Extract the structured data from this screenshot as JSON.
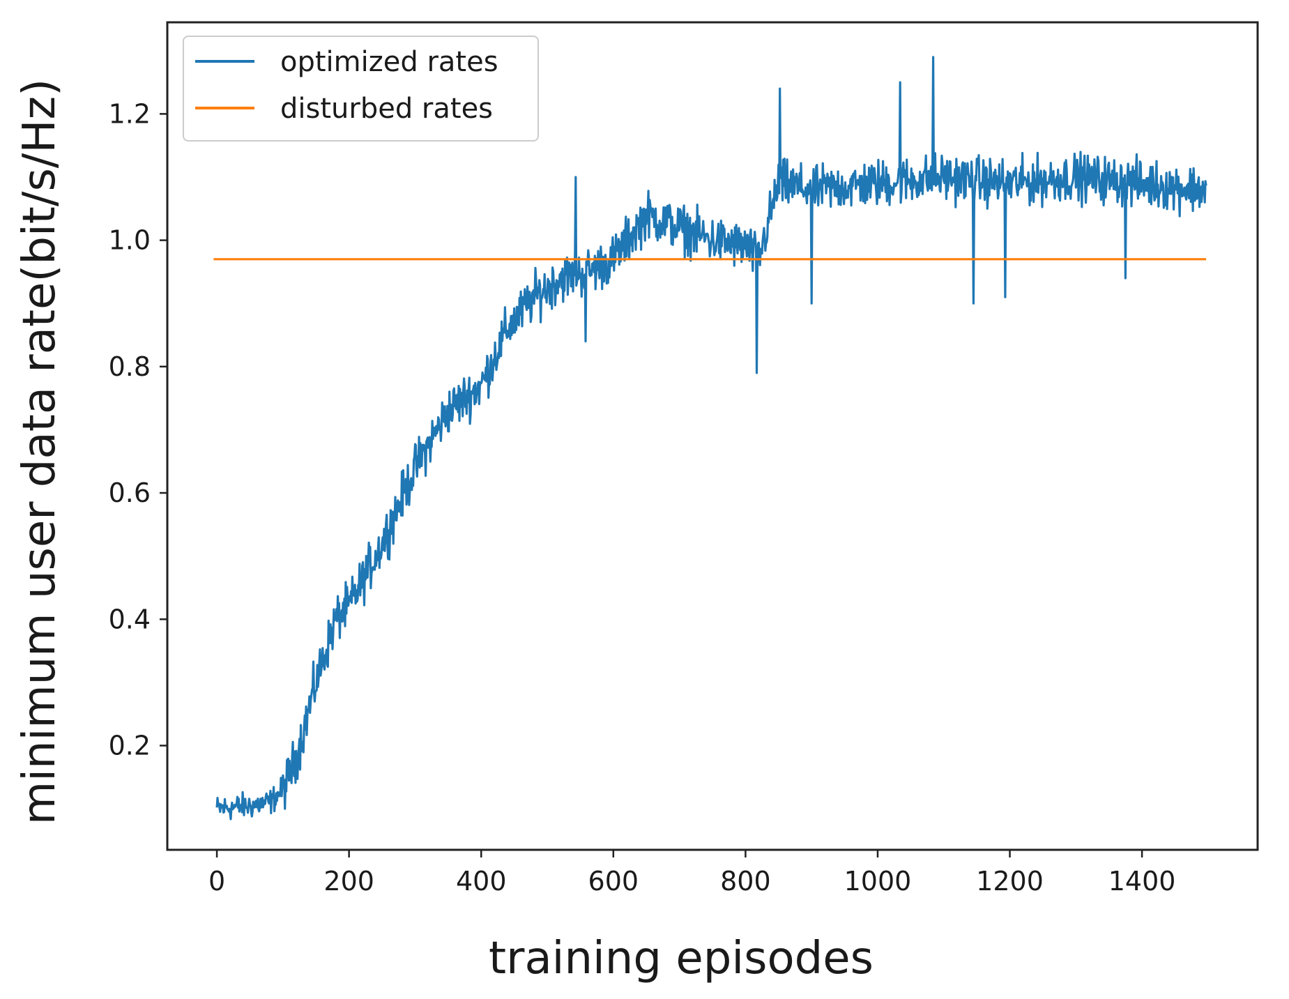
{
  "chart_data": {
    "type": "line",
    "title": "",
    "xlabel": "training episodes",
    "ylabel": "minimum user data rate(bit/s/Hz)",
    "xlim": [
      -75,
      1575
    ],
    "ylim": [
      0.035,
      1.345
    ],
    "xticks": [
      0,
      200,
      400,
      600,
      800,
      1000,
      1200,
      1400
    ],
    "yticks": [
      0.2,
      0.4,
      0.6,
      0.8,
      1.0,
      1.2
    ],
    "ytick_labels": [
      "0.2",
      "0.4",
      "0.6",
      "0.8",
      "1.0",
      "1.2"
    ],
    "grid": false,
    "legend_position": "top-left",
    "series": [
      {
        "name": "optimized rates",
        "color": "#1f77b4",
        "noise": 0.028,
        "x": [
          0,
          50,
          80,
          100,
          120,
          150,
          180,
          200,
          250,
          300,
          350,
          400,
          440,
          480,
          520,
          560,
          600,
          650,
          700,
          750,
          800,
          820,
          850,
          900,
          1000,
          1100,
          1200,
          1300,
          1400,
          1497
        ],
        "y": [
          0.1,
          0.105,
          0.11,
          0.13,
          0.18,
          0.3,
          0.4,
          0.42,
          0.52,
          0.64,
          0.73,
          0.77,
          0.86,
          0.91,
          0.94,
          0.95,
          0.97,
          1.04,
          1.02,
          1.0,
          0.99,
          0.97,
          1.09,
          1.08,
          1.09,
          1.1,
          1.09,
          1.1,
          1.09,
          1.08
        ],
        "spikes": [
          {
            "x": 543,
            "y": 1.1
          },
          {
            "x": 558,
            "y": 0.84
          },
          {
            "x": 817,
            "y": 0.79
          },
          {
            "x": 852,
            "y": 1.24
          },
          {
            "x": 900,
            "y": 0.9
          },
          {
            "x": 1034,
            "y": 1.25
          },
          {
            "x": 1084,
            "y": 1.29
          },
          {
            "x": 1145,
            "y": 0.9
          },
          {
            "x": 1193,
            "y": 0.91
          },
          {
            "x": 1375,
            "y": 0.94
          }
        ]
      },
      {
        "name": "disturbed rates",
        "color": "#ff7f0e",
        "x": [
          -5,
          1497
        ],
        "y": [
          0.97,
          0.97
        ]
      }
    ]
  }
}
